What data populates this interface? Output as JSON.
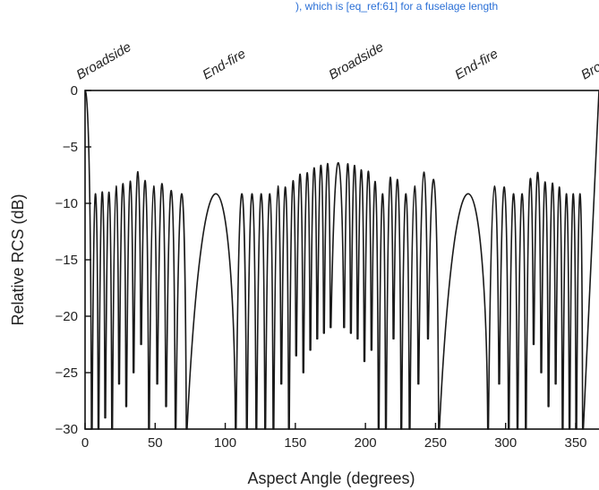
{
  "caption_fragment": "), which is [eq_ref:61] for a fuselage length",
  "chart_data": {
    "type": "line",
    "title": "",
    "xlabel": "Aspect Angle (degrees)",
    "ylabel": "Relative RCS (dB)",
    "xlim": [
      0,
      360
    ],
    "ylim": [
      -30,
      0
    ],
    "xticks": [
      0,
      50,
      100,
      150,
      200,
      250,
      300,
      350
    ],
    "xtick_labels": [
      "0",
      "50",
      "100",
      "150",
      "200",
      "250",
      "300",
      "350"
    ],
    "yticks": [
      0,
      -5,
      -10,
      -15,
      -20,
      -25,
      -30
    ],
    "ytick_labels": [
      "0",
      "−5",
      "−10",
      "−15",
      "−20",
      "−25",
      "−30"
    ],
    "grid": false,
    "legend": "none",
    "line_color": "#1a1a1a",
    "annotations": [
      {
        "text": "Broadside",
        "x": 0
      },
      {
        "text": "End-fire",
        "x": 90
      },
      {
        "text": "Broadside",
        "x": 180
      },
      {
        "text": "End-fire",
        "x": 270
      },
      {
        "text": "Broadside",
        "x": 360
      }
    ],
    "series": [
      {
        "name": "",
        "nulls": [
          {
            "x": 4.8,
            "y": -30
          },
          {
            "x": 9.6,
            "y": -30
          },
          {
            "x": 14.4,
            "y": -29
          },
          {
            "x": 19.3,
            "y": -30
          },
          {
            "x": 24.3,
            "y": -26
          },
          {
            "x": 29.4,
            "y": -28
          },
          {
            "x": 34.6,
            "y": -25
          },
          {
            "x": 40,
            "y": -22.5
          },
          {
            "x": 45.6,
            "y": -30
          },
          {
            "x": 51.5,
            "y": -26
          },
          {
            "x": 57.8,
            "y": -28
          },
          {
            "x": 64.6,
            "y": -30
          },
          {
            "x": 72.5,
            "y": -30
          },
          {
            "x": 107.5,
            "y": -30
          },
          {
            "x": 115.4,
            "y": -30
          },
          {
            "x": 122.2,
            "y": -30
          },
          {
            "x": 128.5,
            "y": -30
          },
          {
            "x": 134.4,
            "y": -30
          },
          {
            "x": 140,
            "y": -26
          },
          {
            "x": 145.4,
            "y": -30
          },
          {
            "x": 150.6,
            "y": -23.5
          },
          {
            "x": 155.7,
            "y": -25
          },
          {
            "x": 160.7,
            "y": -23
          },
          {
            "x": 165.6,
            "y": -22
          },
          {
            "x": 170.4,
            "y": -21.5
          },
          {
            "x": 175.2,
            "y": -21
          },
          {
            "x": 184.8,
            "y": -21
          },
          {
            "x": 189.6,
            "y": -21.5
          },
          {
            "x": 194.4,
            "y": -22
          },
          {
            "x": 199.3,
            "y": -24
          },
          {
            "x": 204.3,
            "y": -23
          },
          {
            "x": 209.4,
            "y": -30
          },
          {
            "x": 214.6,
            "y": -30
          },
          {
            "x": 220,
            "y": -22
          },
          {
            "x": 225.6,
            "y": -30
          },
          {
            "x": 231.5,
            "y": -30
          },
          {
            "x": 237.8,
            "y": -26
          },
          {
            "x": 244.6,
            "y": -22
          },
          {
            "x": 252.5,
            "y": -30
          },
          {
            "x": 287.5,
            "y": -30
          },
          {
            "x": 295.4,
            "y": -26
          },
          {
            "x": 302.2,
            "y": -30
          },
          {
            "x": 308.5,
            "y": -30
          },
          {
            "x": 314.4,
            "y": -30
          },
          {
            "x": 320,
            "y": -22.5
          },
          {
            "x": 325.4,
            "y": -25
          },
          {
            "x": 330.6,
            "y": -28
          },
          {
            "x": 335.7,
            "y": -26
          },
          {
            "x": 340.7,
            "y": -30
          },
          {
            "x": 345.6,
            "y": -30
          },
          {
            "x": 350.4,
            "y": -30
          },
          {
            "x": 355.2,
            "y": -30
          }
        ]
      }
    ]
  }
}
